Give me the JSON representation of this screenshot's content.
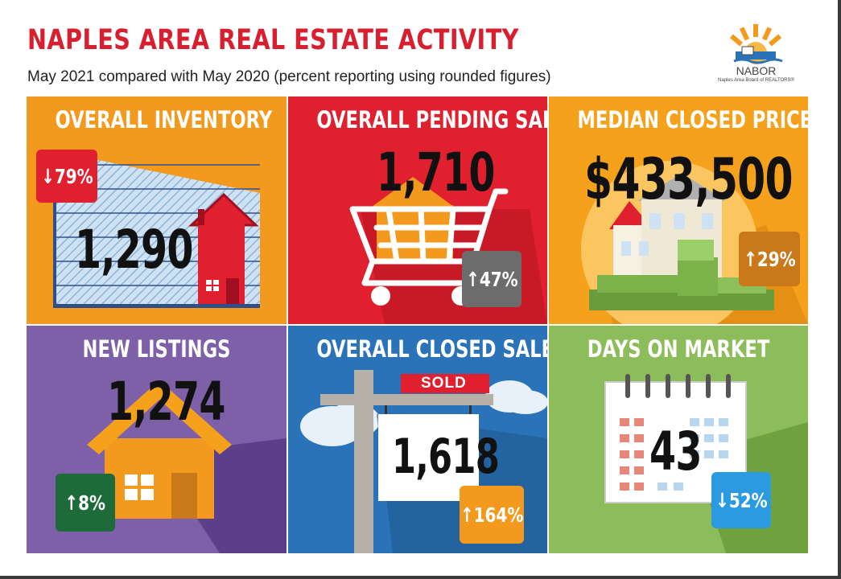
{
  "header": {
    "title": "NAPLES AREA REAL ESTATE ACTIVITY",
    "subtitle": "May 2021 compared with May 2020 (percent reporting using rounded figures)"
  },
  "logo": {
    "name": "NABOR",
    "subtitle": "Naples Area Board of REALTORS®"
  },
  "tiles": {
    "inventory": {
      "title": "OVERALL INVENTORY",
      "value": "1,290",
      "change": "↓79%",
      "color": "#f39a1e"
    },
    "pending": {
      "title": "OVERALL PENDING SALES",
      "value": "1,710",
      "change": "↑47%",
      "color": "#e0202e"
    },
    "median": {
      "title": "MEDIAN CLOSED PRICE",
      "value": "$433,500",
      "change": "↑29%",
      "color": "#f6a11c"
    },
    "listings": {
      "title": "NEW LISTINGS",
      "value": "1,274",
      "change": "↑8%",
      "color": "#7d60a8"
    },
    "closed": {
      "title": "OVERALL CLOSED SALES",
      "value": "1,618",
      "change": "↑164%",
      "sign": "SOLD",
      "color": "#2a73b8"
    },
    "days": {
      "title": "DAYS ON MARKET",
      "value": "43",
      "change": "↓52%",
      "color": "#8dbd5a"
    }
  }
}
